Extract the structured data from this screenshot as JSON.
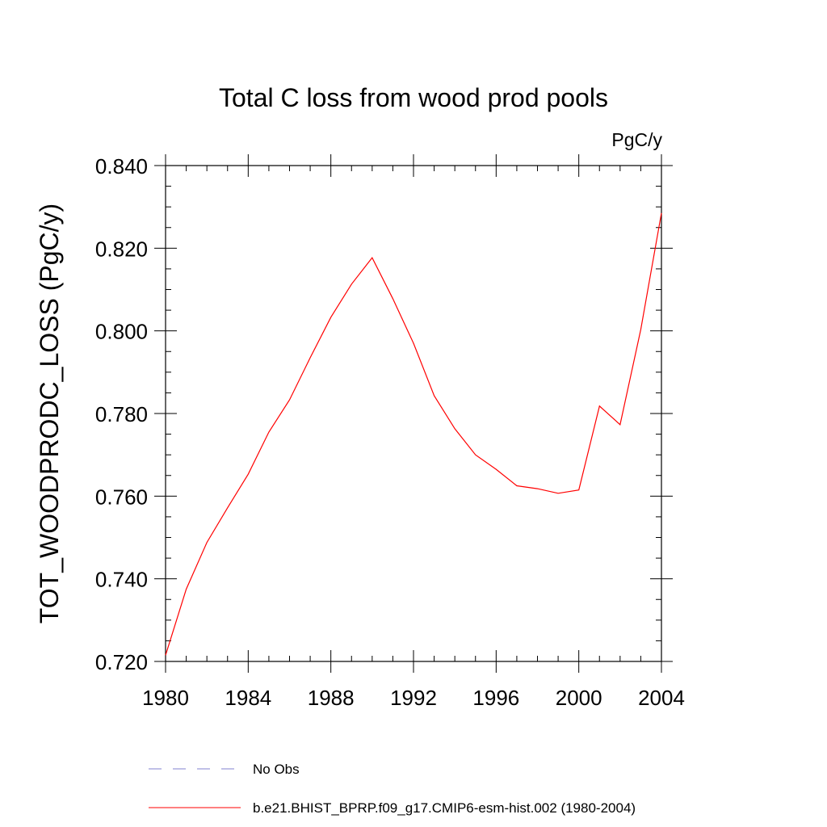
{
  "chart_data": {
    "type": "line",
    "title": "Total C loss from wood prod pools",
    "units_label": "PgC/y",
    "ylabel": "TOT_WOODPRODC_LOSS  (PgC/y)",
    "xlabel": "",
    "xlim": [
      1980,
      2004
    ],
    "ylim": [
      0.72,
      0.84
    ],
    "x_ticks": [
      1980,
      1984,
      1988,
      1992,
      1996,
      2000,
      2004
    ],
    "x_tick_labels": [
      "1980",
      "1984",
      "1988",
      "1992",
      "1996",
      "2000",
      "2004"
    ],
    "y_ticks": [
      0.72,
      0.74,
      0.76,
      0.78,
      0.8,
      0.82,
      0.84
    ],
    "y_tick_labels": [
      "0.720",
      "0.740",
      "0.760",
      "0.780",
      "0.800",
      "0.820",
      "0.840"
    ],
    "grid": false,
    "legend_position": "bottom",
    "series": [
      {
        "name": "b.e21.BHIST_BPRP.f09_g17.CMIP6-esm-hist.002 (1980-2004)",
        "color": "#ff0000",
        "style": "solid",
        "x": [
          1980,
          1981,
          1982,
          1983,
          1984,
          1985,
          1986,
          1987,
          1988,
          1989,
          1990,
          1991,
          1992,
          1993,
          1994,
          1995,
          1996,
          1997,
          1998,
          1999,
          2000,
          2001,
          2002,
          2003,
          2004
        ],
        "values": [
          0.7215,
          0.7375,
          0.7488,
          0.7572,
          0.7653,
          0.7755,
          0.7833,
          0.7935,
          0.8033,
          0.8113,
          0.8177,
          0.8078,
          0.797,
          0.7843,
          0.7763,
          0.77,
          0.7665,
          0.7625,
          0.7618,
          0.7607,
          0.7615,
          0.7818,
          0.7773,
          0.8003,
          0.8285
        ]
      }
    ],
    "legend": [
      {
        "label": "No Obs",
        "color": "#8080d0",
        "style": "dashed"
      },
      {
        "label": "b.e21.BHIST_BPRP.f09_g17.CMIP6-esm-hist.002 (1980-2004)",
        "color": "#ff0000",
        "style": "solid"
      }
    ]
  }
}
